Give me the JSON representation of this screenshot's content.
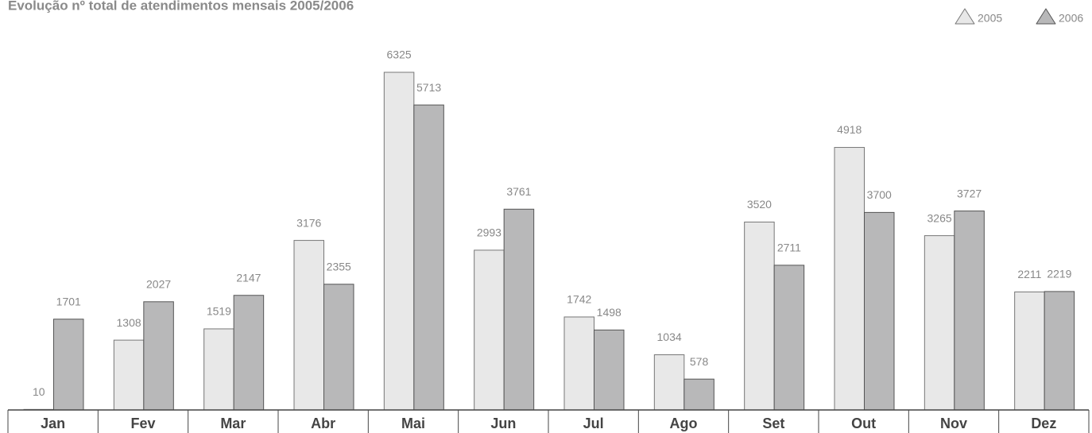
{
  "chart_data": {
    "type": "bar",
    "title": "Evolução nº total de atendimentos mensais 2005/2006",
    "categories": [
      "Jan",
      "Fev",
      "Mar",
      "Abr",
      "Mai",
      "Jun",
      "Jul",
      "Ago",
      "Set",
      "Out",
      "Nov",
      "Dez"
    ],
    "series": [
      {
        "name": "2005",
        "color": "#e8e8e8",
        "values": [
          10,
          1308,
          1519,
          3176,
          6325,
          2993,
          1742,
          1034,
          3520,
          4918,
          3265,
          2211
        ]
      },
      {
        "name": "2006",
        "color": "#b8b8b9",
        "values": [
          1701,
          2027,
          2147,
          2355,
          5713,
          3761,
          1498,
          578,
          2711,
          3700,
          3727,
          2219
        ]
      }
    ],
    "legend": "top-right"
  }
}
